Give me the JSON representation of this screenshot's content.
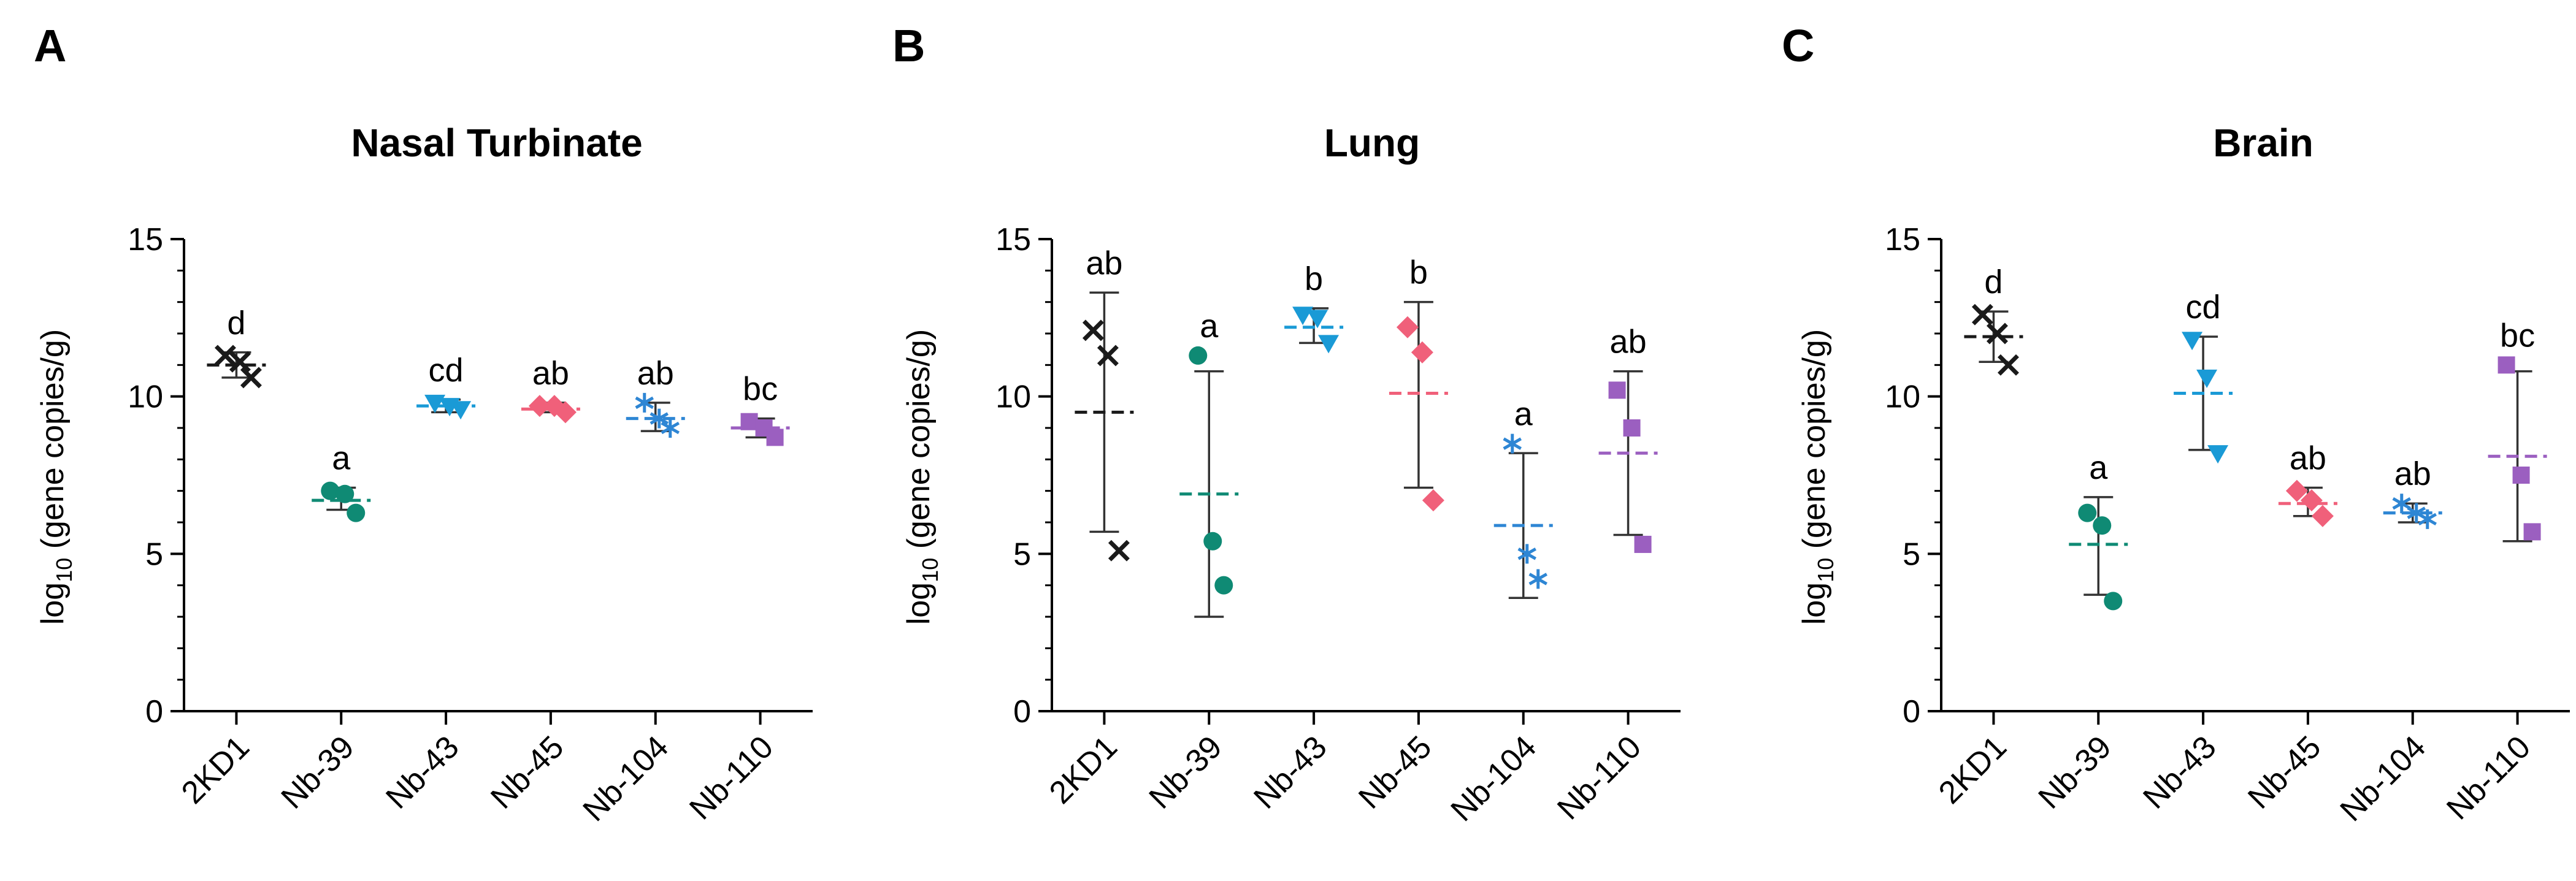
{
  "series_colors": {
    "2KD1": "#1a1a1a",
    "Nb-39": "#0f8a74",
    "Nb-43": "#1a9ad6",
    "Nb-45": "#f0607a",
    "Nb-104": "#2e86d4",
    "Nb-110": "#9b5fc0"
  },
  "marker_shapes": {
    "2KD1": "cross-icon",
    "Nb-39": "circle-icon",
    "Nb-43": "triangle-down-icon",
    "Nb-45": "diamond-icon",
    "Nb-104": "asterisk-icon",
    "Nb-110": "square-icon"
  },
  "chart_data": [
    {
      "panel": "A",
      "type": "scatter",
      "title": "Nasal Turbinate",
      "ylabel_main": "log",
      "ylabel_sub": "10",
      "ylabel_rest": " (gene copies/g)",
      "ylim": [
        0,
        15
      ],
      "yticks": [
        0,
        5,
        10,
        15
      ],
      "categories": [
        "2KD1",
        "Nb-39",
        "Nb-43",
        "Nb-45",
        "Nb-104",
        "Nb-110"
      ],
      "series": [
        {
          "name": "2KD1",
          "points": [
            11.3,
            11.1,
            10.6
          ],
          "mean": 11.0,
          "sd_low": 10.6,
          "sd_high": 11.4,
          "letter": "d"
        },
        {
          "name": "Nb-39",
          "points": [
            7.0,
            6.9,
            6.3
          ],
          "mean": 6.7,
          "sd_low": 6.4,
          "sd_high": 7.1,
          "letter": "a"
        },
        {
          "name": "Nb-43",
          "points": [
            9.8,
            9.7,
            9.6
          ],
          "mean": 9.7,
          "sd_low": 9.5,
          "sd_high": 9.9,
          "letter": "cd"
        },
        {
          "name": "Nb-45",
          "points": [
            9.7,
            9.7,
            9.5
          ],
          "mean": 9.6,
          "sd_low": 9.5,
          "sd_high": 9.8,
          "letter": "ab"
        },
        {
          "name": "Nb-104",
          "points": [
            9.8,
            9.3,
            9.0
          ],
          "mean": 9.3,
          "sd_low": 8.9,
          "sd_high": 9.8,
          "letter": "ab"
        },
        {
          "name": "Nb-110",
          "points": [
            9.2,
            9.0,
            8.7
          ],
          "mean": 9.0,
          "sd_low": 8.7,
          "sd_high": 9.3,
          "letter": "bc"
        }
      ]
    },
    {
      "panel": "B",
      "type": "scatter",
      "title": "Lung",
      "ylabel_main": "log",
      "ylabel_sub": "10",
      "ylabel_rest": " (gene copies/g)",
      "ylim": [
        0,
        15
      ],
      "yticks": [
        0,
        5,
        10,
        15
      ],
      "categories": [
        "2KD1",
        "Nb-39",
        "Nb-43",
        "Nb-45",
        "Nb-104",
        "Nb-110"
      ],
      "series": [
        {
          "name": "2KD1",
          "points": [
            12.1,
            11.3,
            5.1
          ],
          "mean": 9.5,
          "sd_low": 5.7,
          "sd_high": 13.3,
          "letter": "ab"
        },
        {
          "name": "Nb-39",
          "points": [
            11.3,
            5.4,
            4.0
          ],
          "mean": 6.9,
          "sd_low": 3.0,
          "sd_high": 10.8,
          "letter": "a"
        },
        {
          "name": "Nb-43",
          "points": [
            12.6,
            12.5,
            11.7
          ],
          "mean": 12.2,
          "sd_low": 11.7,
          "sd_high": 12.8,
          "letter": "b"
        },
        {
          "name": "Nb-45",
          "points": [
            12.2,
            11.4,
            6.7
          ],
          "mean": 10.1,
          "sd_low": 7.1,
          "sd_high": 13.0,
          "letter": "b"
        },
        {
          "name": "Nb-104",
          "points": [
            8.5,
            5.0,
            4.2
          ],
          "mean": 5.9,
          "sd_low": 3.6,
          "sd_high": 8.2,
          "letter": "a"
        },
        {
          "name": "Nb-110",
          "points": [
            10.2,
            9.0,
            5.3
          ],
          "mean": 8.2,
          "sd_low": 5.6,
          "sd_high": 10.8,
          "letter": "ab"
        }
      ]
    },
    {
      "panel": "C",
      "type": "scatter",
      "title": "Brain",
      "ylabel_main": "log",
      "ylabel_sub": "10",
      "ylabel_rest": " (gene copies/g)",
      "ylim": [
        0,
        15
      ],
      "yticks": [
        0,
        5,
        10,
        15
      ],
      "categories": [
        "2KD1",
        "Nb-39",
        "Nb-43",
        "Nb-45",
        "Nb-104",
        "Nb-110"
      ],
      "series": [
        {
          "name": "2KD1",
          "points": [
            12.6,
            12.0,
            11.0
          ],
          "mean": 11.9,
          "sd_low": 11.1,
          "sd_high": 12.7,
          "letter": "d"
        },
        {
          "name": "Nb-39",
          "points": [
            6.3,
            5.9,
            3.5
          ],
          "mean": 5.3,
          "sd_low": 3.7,
          "sd_high": 6.8,
          "letter": "a"
        },
        {
          "name": "Nb-43",
          "points": [
            11.8,
            10.6,
            8.2
          ],
          "mean": 10.1,
          "sd_low": 8.3,
          "sd_high": 11.9,
          "letter": "cd"
        },
        {
          "name": "Nb-45",
          "points": [
            7.0,
            6.7,
            6.2
          ],
          "mean": 6.6,
          "sd_low": 6.2,
          "sd_high": 7.1,
          "letter": "ab"
        },
        {
          "name": "Nb-104",
          "points": [
            6.6,
            6.3,
            6.1
          ],
          "mean": 6.3,
          "sd_low": 6.0,
          "sd_high": 6.6,
          "letter": "ab"
        },
        {
          "name": "Nb-110",
          "points": [
            11.0,
            7.5,
            5.7
          ],
          "mean": 8.1,
          "sd_low": 5.4,
          "sd_high": 10.8,
          "letter": "bc"
        }
      ]
    }
  ]
}
